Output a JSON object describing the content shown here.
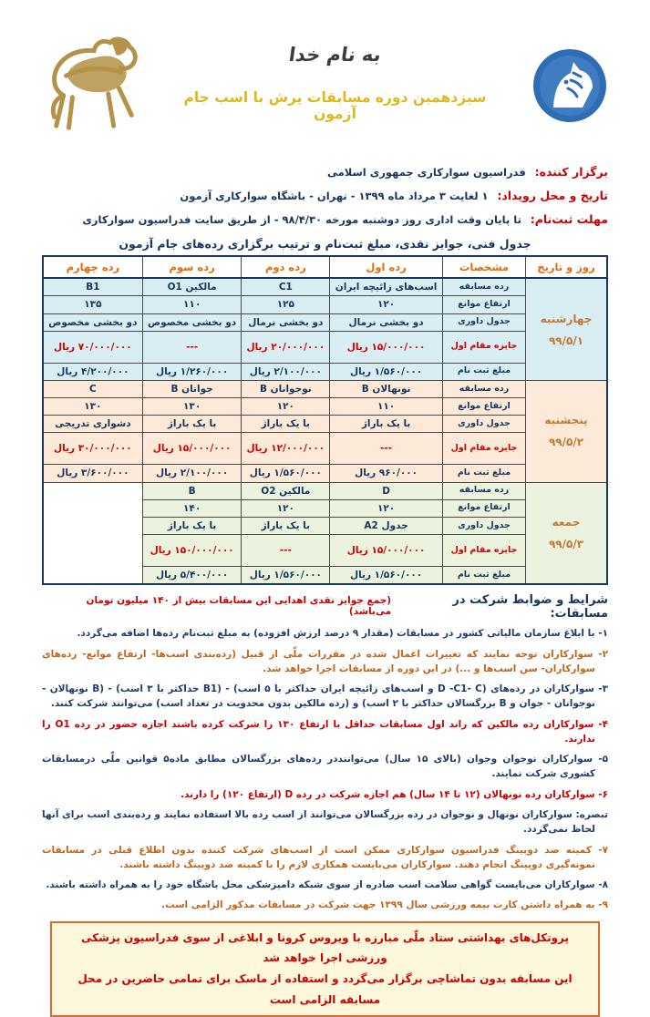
{
  "header": {
    "bismillah": "به نام خدا",
    "title": "سیزدهمین دوره مسابقات پرش با اسب جام آزمون",
    "left_icon": "gold-horse-ornament",
    "right_icon": "federation-horse-head-logo",
    "title_color": "#ddb81f",
    "logo_blue": "#2e6db4",
    "horse_gold": "#b49247"
  },
  "info": [
    {
      "label": "برگزار کننده:",
      "value": "فدراسیون سوارکاری جمهوری اسلامی"
    },
    {
      "label": "تاریخ و محل رویداد:",
      "value": "۱ لغایت ۳ مرداد ماه ۱۳۹۹ - تهران - باشگاه سوارکاری آزمون"
    },
    {
      "label": "مهلت ثبت‌نام:",
      "value": "تا پایان وقت اداری روز دوشنبه مورخه ۹۸/۴/۳۰ - از طریق سایت فدراسیون سوارکاری"
    }
  ],
  "table": {
    "heading": "جدول فنی، جوایز نقدی، مبلغ ثبت‌نام و ترتیب برگزاری رده‌های جام آزمون",
    "columns": [
      "روز و تاریخ",
      "مشخصات",
      "رده اول",
      "رده دوم",
      "رده سوم",
      "رده چهارم"
    ],
    "row_labels": [
      "رده مسابقه",
      "ارتفاع موانع",
      "جدول داوری",
      "جایزه مقام اول",
      "مبلغ ثبت نام"
    ],
    "days": [
      {
        "name": "چهارشنبه",
        "date": "۹۹/۵/۱",
        "color": "#d9eef3",
        "empty_col": false,
        "rows": [
          [
            "اسب‌های زائیچه ایران",
            "C1",
            "مالکین O1",
            "B1"
          ],
          [
            "۱۲۰",
            "۱۲۵",
            "۱۱۰",
            "۱۳۵"
          ],
          [
            "دو بخشی نرمال",
            "دو بخشی نرمال",
            "دو بخشی مخصوص",
            "دو بخشی مخصوص"
          ],
          [
            "۱۵/۰۰۰/۰۰۰ ریال",
            "۲۰/۰۰۰/۰۰۰ ریال",
            "---",
            "۷۰/۰۰۰/۰۰۰ ریال"
          ],
          [
            "۱/۵۶۰/۰۰۰ ریال",
            "۲/۱۰۰/۰۰۰ ریال",
            "۱/۲۶۰/۰۰۰ ریال",
            "۴/۲۰۰/۰۰۰ ریال"
          ]
        ]
      },
      {
        "name": "پنجشنبه",
        "date": "۹۹/۵/۲",
        "color": "#fde9d8",
        "empty_col": false,
        "rows": [
          [
            "نونهالان B",
            "نوجوانان B",
            "جوانان B",
            "C"
          ],
          [
            "۱۱۰",
            "۱۲۰",
            "۱۳۰",
            "۱۳۰"
          ],
          [
            "با یک باراژ",
            "با یک باراژ",
            "با یک باراژ",
            "دشواری تدریجی"
          ],
          [
            "---",
            "۱۲/۰۰۰/۰۰۰ ریال",
            "۱۵/۰۰۰/۰۰۰ ریال",
            "۳۰/۰۰۰/۰۰۰ ریال"
          ],
          [
            "۹۶۰/۰۰۰ ریال",
            "۱/۵۶۰/۰۰۰ ریال",
            "۲/۱۰۰/۰۰۰ ریال",
            "۳/۶۰۰/۰۰۰ ریال"
          ]
        ]
      },
      {
        "name": "جمعه",
        "date": "۹۹/۵/۳",
        "color": "#ebf2de",
        "empty_col": true,
        "rows": [
          [
            "D",
            "مالکین O2",
            "B"
          ],
          [
            "۱۲۰",
            "۱۲۰",
            "۱۴۰"
          ],
          [
            "جدول A2",
            "با یک باراژ",
            "با یک باراژ"
          ],
          [
            "۱۵/۰۰۰/۰۰۰ ریال",
            "---",
            "۱۵۰/۰۰۰/۰۰۰ ریال"
          ],
          [
            "۱/۵۶۰/۰۰۰ ریال",
            "۱/۵۶۰/۰۰۰ ریال",
            "۵/۴۰۰/۰۰۰ ریال"
          ]
        ]
      }
    ]
  },
  "conditions": {
    "title": "شرایط و ضوابط شرکت در مسابقات:",
    "note": "(جمع جوایز نقدی اهدایی این مسابقات بیش از ۱۴۰ میلیون تومان می‌باشد)",
    "items": [
      {
        "tone": "navy",
        "text": "۱- با ابلاغ سازمان مالیاتی کشور در مسابقات (مقدار ۹ درصد ارزش افزوده) به مبلغ ثبت‌نام رده‌ها اضافه می‌گردد."
      },
      {
        "tone": "orange",
        "text": "۲- سوارکاران توجه نمایند که تغییرات اعمال شده در مقررات ملّی از قبیل (رده‌بندی اسب‌ها- ارتفاع موانع- رده‌های سوارکاران- سن اسب‌ها و ...) در این دوره از مسابقات اجرا خواهد شد."
      },
      {
        "tone": "navy",
        "text": "۳- سوارکاران در رده‌های (D -C1- C و اسب‌های زائیچه ایران حداکثر با ۵ اسب) - (B1 حداکثر با ۳ اسب) - (B نونهالان - نوجوانان - جوان و B بزرگسالان حداکثر با ۲ اسب) و (رده مالکین بدون محدویت در تعداد اسب) می‌توانند شرکت کنند."
      },
      {
        "tone": "red",
        "text": "۴- سوارکاران رده مالکین که راند اول مسابقات حداقل با ارتفاع ۱۳۰ را شرکت کرده باشند اجازه حضور در رده O1 را ندارند."
      },
      {
        "tone": "navy",
        "text": "۵- سوارکاران نوجوان وجوان (بالای ۱۵ سال) می‌تواننددر رده‌های بزرگسالان مطابق ماده۵ قوانین ملّی درمسابقات کشوری شرکت نمایند."
      },
      {
        "tone": "red",
        "text": "۶- سوارکاران رده نونهالان (۱۲ تا ۱۴ سال) هم اجازه شرکت در رده D (ارتفاع ۱۲۰) را دارند."
      },
      {
        "tone": "navy",
        "text": "تبصره: سوارکاران نونهال و نوجوان در رده بزرگسالان می‌توانند از اسب رده بالا استفاده نمایند و رده‌بندی اسب برای آنها لحاظ نمی‌گردد."
      },
      {
        "tone": "orange",
        "text": "۷- کمیته ضد دوپینگ فدراسیون سوارکاری ممکن است از اسب‌های شرکت کننده بدون اطلاع قبلی در مسابقات نمونه‌گیری دوپینگ انجام دهند. سوارکاران می‌بایست همکاری لازم را با کمیته ضد دوپینگ داشته باشند."
      },
      {
        "tone": "navy",
        "text": "۸- سوارکاران می‌بایست گواهی سلامت اسب صادره از سوی شبکه دامپزشکی محل باشگاه خود را به همراه داشته باشند."
      },
      {
        "tone": "orange",
        "text": "۹- به همراه داشتن کارت بیمه ورزشی سال ۱۳۹۹ جهت شرکت در مسابقات مذکور الزامی است."
      }
    ]
  },
  "notice": {
    "line1": "پروتکل‌های بهداشتی ستاد ملّی مبارزه با ویروس کرونا و ابلاغی از سوی فدراسیون پزشکی ورزشی اجرا خواهد شد",
    "line2": "این مسابقه بدون تماشاچی برگزار می‌گردد و استفاده از ماسک برای تمامی حاضرین در محل مسابقه الزامی است"
  }
}
